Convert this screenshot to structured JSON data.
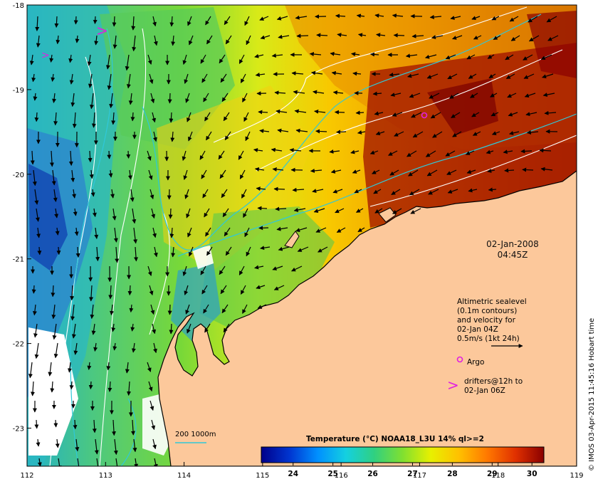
{
  "map": {
    "timestamp_date": "02-Jan-2008",
    "timestamp_time": "04:45Z",
    "lon_ticks": [
      "112",
      "113",
      "114",
      "115",
      "116",
      "117",
      "118",
      "119"
    ],
    "lat_ticks": [
      "-18",
      "-19",
      "-20",
      "-21",
      "-22",
      "-23"
    ],
    "lon_range": [
      112,
      119
    ],
    "lat_range": [
      -23.45,
      -18
    ],
    "credit": "© IMOS 03-Apr-2015 11:45:16 Hobart time",
    "depth_contours_label": "200  1000m",
    "colors": {
      "land": "#fcc89b",
      "arrow": "#000000",
      "argo": "#e020e0",
      "drifter": "#e020e0",
      "contour": "#30c8d8",
      "sealevel": "#ffffff"
    }
  },
  "legend": {
    "lines": [
      "Altimetric sealevel",
      "(0.1m contours)",
      "and velocity for",
      "02-Jan 04Z",
      "0.5m/s (1kt 24h)"
    ],
    "argo_label": "Argo",
    "drifters_line1": "drifters@12h to",
    "drifters_line2": "02-Jan 06Z"
  },
  "colorbar": {
    "title": "Temperature (°C) NOAA18_L3U 14% ql>=2",
    "ticks": [
      "24",
      "25",
      "26",
      "27",
      "28",
      "29",
      "30"
    ],
    "tick_values": [
      24,
      25,
      26,
      27,
      28,
      29,
      30
    ],
    "range": [
      23.2,
      30.3
    ],
    "stops": [
      "#00008a",
      "#0035d0",
      "#0090ff",
      "#14d0e0",
      "#30d080",
      "#80e030",
      "#e8f000",
      "#ffc000",
      "#ff7800",
      "#e03000",
      "#8a0000"
    ]
  }
}
